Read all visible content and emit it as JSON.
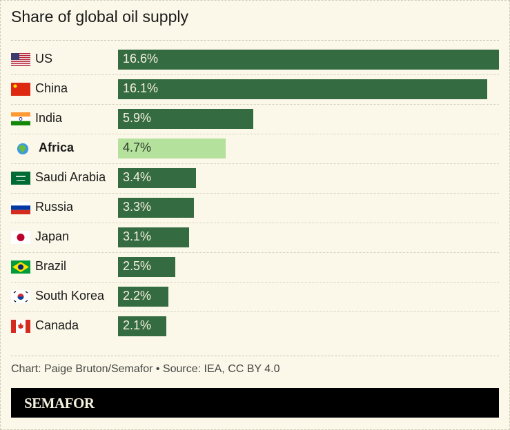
{
  "colors": {
    "bar": "#356b41",
    "highlight": "#b4e29c",
    "background": "#fbf8e9",
    "bar_text": "#f5f1e0",
    "highlight_text": "#2a3a2a"
  },
  "chart_data": {
    "type": "bar",
    "orientation": "horizontal",
    "title": "Share of global oil supply",
    "categories": [
      "US",
      "China",
      "India",
      "Africa",
      "Saudi Arabia",
      "Russia",
      "Japan",
      "Brazil",
      "South Korea",
      "Canada"
    ],
    "values": [
      16.6,
      16.1,
      5.9,
      4.7,
      3.4,
      3.3,
      3.1,
      2.5,
      2.2,
      2.1
    ],
    "labels": [
      "16.6%",
      "16.1%",
      "5.9%",
      "4.7%",
      "3.4%",
      "3.3%",
      "3.1%",
      "2.5%",
      "2.2%",
      "2.1%"
    ],
    "icons": [
      "us-flag-icon",
      "china-flag-icon",
      "india-flag-icon",
      "globe-africa-icon",
      "saudi-arabia-flag-icon",
      "russia-flag-icon",
      "japan-flag-icon",
      "brazil-flag-icon",
      "south-korea-flag-icon",
      "canada-flag-icon"
    ],
    "highlight": "Africa",
    "xlim": [
      0,
      16.6
    ],
    "grid": false
  },
  "footer": {
    "credit": "Chart: Paige Bruton/Semafor • Source: IEA, CC BY 4.0",
    "logo": "SEMAFOR"
  }
}
